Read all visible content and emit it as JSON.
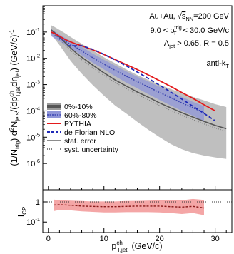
{
  "chart_data": [
    {
      "type": "line",
      "panel": "top",
      "ylabel": "(1/N_trig) d²N_jets/(dp_T,jet^ch dη_jet)  (GeV/c)^-1",
      "yscale": "log",
      "xlim": [
        -1,
        33
      ],
      "ylim": [
        1e-07,
        1
      ],
      "y_ticks": [
        {
          "value": 1e-06,
          "label": "10",
          "exp": "-6"
        },
        {
          "value": 1e-05,
          "label": "10",
          "exp": "-5"
        },
        {
          "value": 0.0001,
          "label": "10",
          "exp": "-4"
        },
        {
          "value": 0.001,
          "label": "10",
          "exp": "-3"
        },
        {
          "value": 0.01,
          "label": "10",
          "exp": "-2"
        },
        {
          "value": 0.1,
          "label": "10",
          "exp": "-1"
        }
      ],
      "annotations": [
        {
          "lines": [
            "Au+Au, √s_NN=200 GeV"
          ],
          "text": "Au+Au, ",
          "sqrt": "s",
          "sub": "NN",
          "tail": "=200 GeV"
        },
        {
          "text": "9.0 < p",
          "sub": "T",
          "sup": "trig",
          "tail": " < 30.0 GeV/c"
        },
        {
          "text": "A",
          "sub": "jet",
          "tail": " > 0.65, R = 0.5"
        },
        {
          "text": "anti-k",
          "sub": "T",
          "tail": ""
        }
      ],
      "legend": {
        "placement": "bottom-left",
        "entries": [
          {
            "label": "0%-10%",
            "style": "band-gray"
          },
          {
            "label": "60%-80%",
            "style": "band-blue"
          },
          {
            "label": "PYTHIA",
            "style": "line-red"
          },
          {
            "label": "de Florian NLO",
            "style": "dashed-blue"
          },
          {
            "label": "stat. error",
            "style": "solid-gray"
          },
          {
            "label": "syst. uncertainty",
            "style": "dotted"
          }
        ]
      },
      "series": [
        {
          "name": "0%-10%",
          "color": "#555555",
          "x": [
            0.5,
            1,
            2,
            3,
            4,
            5,
            6,
            8,
            10,
            12,
            14,
            16,
            18,
            20,
            22,
            24,
            26,
            28,
            30,
            32
          ],
          "y": [
            0.12,
            0.1,
            0.065,
            0.04,
            0.025,
            0.016,
            0.011,
            0.0055,
            0.0028,
            0.0015,
            0.00088,
            0.00052,
            0.00033,
            0.0002,
            0.00013,
            8.5e-05,
            5.8e-05,
            4e-05,
            2.8e-05,
            2.1e-05
          ],
          "syst_low": [
            0.08,
            0.06,
            0.032,
            0.016,
            0.008,
            0.0045,
            0.0026,
            0.00095,
            0.00038,
            0.00016,
            8e-05,
            3.8e-05,
            1.9e-05,
            1e-05,
            5.5e-06,
            3.5e-06,
            2.5e-06,
            2e-06,
            1.7e-06,
            1.5e-06
          ],
          "syst_high": [
            0.18,
            0.16,
            0.12,
            0.09,
            0.065,
            0.048,
            0.036,
            0.02,
            0.011,
            0.0065,
            0.0038,
            0.0023,
            0.0015,
            0.001,
            0.00068,
            0.00048,
            0.00034,
            0.00025,
            0.00018,
            0.00014
          ]
        },
        {
          "name": "60%-80%",
          "color": "#3a44b0",
          "x": [
            0.5,
            1,
            2,
            3,
            4,
            5,
            6,
            8,
            10,
            12,
            14,
            16,
            18,
            20,
            22,
            24,
            26,
            28
          ],
          "y": [
            0.1,
            0.085,
            0.06,
            0.045,
            0.034,
            0.026,
            0.019,
            0.0105,
            0.006,
            0.0035,
            0.0021,
            0.0013,
            0.0008,
            0.0005,
            0.00032,
            0.0002,
            0.00013,
            8.5e-05
          ],
          "syst_low": [
            0.07,
            0.06,
            0.045,
            0.033,
            0.024,
            0.018,
            0.013,
            0.0068,
            0.0038,
            0.0021,
            0.0012,
            0.00072,
            0.00043,
            0.00026,
            0.00016,
            0.0001,
            6.5e-05,
            4e-05
          ],
          "syst_high": [
            0.13,
            0.11,
            0.08,
            0.06,
            0.045,
            0.035,
            0.027,
            0.015,
            0.0088,
            0.0053,
            0.0032,
            0.002,
            0.0013,
            0.00082,
            0.00053,
            0.00034,
            0.00022,
            0.00015
          ]
        },
        {
          "name": "PYTHIA",
          "color": "#e31a1c",
          "x": [
            0.5,
            1,
            2,
            3,
            4,
            5,
            6,
            8,
            10,
            12,
            14,
            16,
            18,
            20,
            22,
            24,
            26,
            28,
            30
          ],
          "y": [
            0.1,
            0.09,
            0.07,
            0.052,
            0.042,
            0.035,
            0.03,
            0.021,
            0.014,
            0.009,
            0.0058,
            0.0037,
            0.0023,
            0.0014,
            0.00085,
            0.0005,
            0.0003,
            0.00017,
            0.0001
          ]
        },
        {
          "name": "de Florian NLO",
          "color": "#1f2ab8",
          "x": [
            3.5,
            6,
            8,
            10,
            12,
            14,
            16,
            18,
            20,
            22,
            24,
            26,
            28,
            30
          ],
          "y": [
            0.03,
            0.03,
            0.022,
            0.0142,
            0.0087,
            0.0052,
            0.003,
            0.0017,
            0.00095,
            0.00052,
            0.00028,
            0.00015,
            8e-05,
            4.2e-05
          ]
        }
      ]
    },
    {
      "type": "line",
      "panel": "bottom",
      "ylabel": "I_CP",
      "yscale": "log",
      "xlabel": "p_T,jet^ch (GeV/c)",
      "xlim": [
        -1,
        33
      ],
      "ylim": [
        0.03,
        4
      ],
      "x_ticks": [
        0,
        10,
        20,
        30
      ],
      "y_ticks": [
        {
          "value": 0.1,
          "label": "10",
          "exp": "-1"
        },
        {
          "value": 1,
          "label": "1"
        }
      ],
      "reference_line": 1,
      "series": [
        {
          "name": "I_CP",
          "color": "#c0392b",
          "x": [
            1,
            2,
            4,
            6,
            8,
            10,
            12,
            14,
            16,
            18,
            20,
            22,
            24,
            26,
            28
          ],
          "y": [
            0.7,
            0.72,
            0.68,
            0.62,
            0.6,
            0.58,
            0.58,
            0.6,
            0.62,
            0.62,
            0.62,
            0.58,
            0.55,
            0.6,
            0.5
          ],
          "syst_low": [
            0.35,
            0.4,
            0.38,
            0.34,
            0.32,
            0.3,
            0.3,
            0.31,
            0.31,
            0.31,
            0.3,
            0.28,
            0.25,
            0.28,
            0.22
          ],
          "syst_high": [
            1.3,
            1.2,
            1.15,
            1.1,
            1.05,
            1.05,
            1.05,
            1.1,
            1.12,
            1.15,
            1.2,
            1.2,
            1.2,
            1.4,
            1.25
          ]
        }
      ]
    }
  ]
}
